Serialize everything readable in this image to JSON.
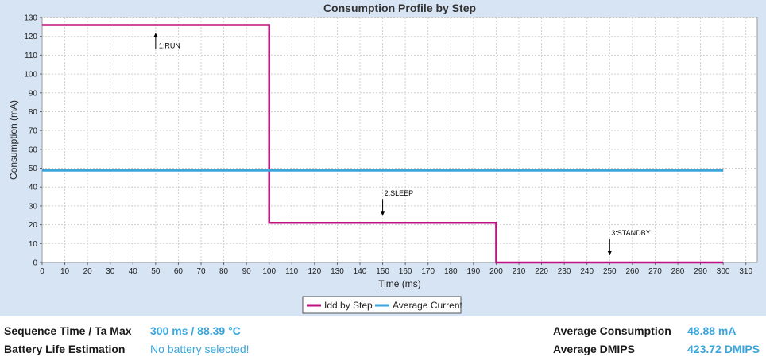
{
  "chart_data": {
    "type": "line",
    "title": "Consumption Profile by Step",
    "xlabel": "Time (ms)",
    "ylabel": "Consumption (mA)",
    "xlim": [
      0,
      315
    ],
    "ylim": [
      0,
      130
    ],
    "x_ticks": [
      0,
      10,
      20,
      30,
      40,
      50,
      60,
      70,
      80,
      90,
      100,
      110,
      120,
      130,
      140,
      150,
      160,
      170,
      180,
      190,
      200,
      210,
      220,
      230,
      240,
      250,
      260,
      270,
      280,
      290,
      300,
      310
    ],
    "y_ticks": [
      0,
      10,
      20,
      30,
      40,
      50,
      60,
      70,
      80,
      90,
      100,
      110,
      120,
      130
    ],
    "grid": true,
    "legend_position": "bottom",
    "series": [
      {
        "name": "Idd by Step",
        "color": "#c0127f",
        "step": true,
        "points": [
          [
            0,
            126
          ],
          [
            100,
            126
          ],
          [
            100,
            21
          ],
          [
            200,
            21
          ],
          [
            200,
            0
          ],
          [
            300,
            0
          ]
        ]
      },
      {
        "name": "Average Current",
        "color": "#3ba6dc",
        "step": false,
        "points": [
          [
            0,
            48.88
          ],
          [
            300,
            48.88
          ]
        ]
      }
    ],
    "annotations": [
      {
        "text": "1:RUN",
        "x": 50,
        "y": 126,
        "arrow": "up"
      },
      {
        "text": "2:SLEEP",
        "x": 150,
        "y": 21,
        "arrow": "down"
      },
      {
        "text": "3:STANDBY",
        "x": 250,
        "y": 0,
        "arrow": "down"
      }
    ]
  },
  "footer": {
    "seq_label": "Sequence Time / Ta Max",
    "seq_value": "300 ms / 88.39 °C",
    "battery_label": "Battery Life Estimation",
    "battery_value": "No battery selected!",
    "avg_cons_label": "Average Consumption",
    "avg_cons_value": "48.88 mA",
    "avg_dmips_label": "Average DMIPS",
    "avg_dmips_value": "423.72 DMIPS"
  },
  "colors": {
    "panel_bg": "#d6e4f4",
    "accent": "#3ba6dc",
    "step_line": "#c0127f"
  }
}
